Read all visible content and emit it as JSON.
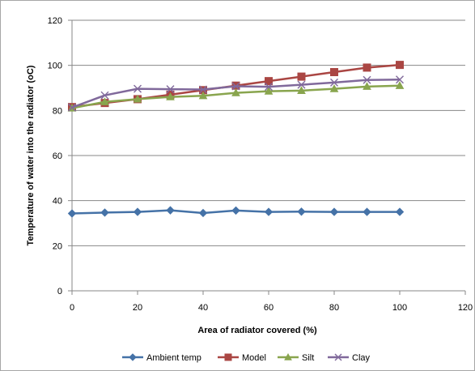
{
  "chart_data": {
    "type": "line",
    "title": "",
    "xlabel": "Area of radiator covered (%)",
    "ylabel": "Temperature of water into the radiator (oC)",
    "xlim": [
      0,
      120
    ],
    "ylim": [
      0,
      120
    ],
    "xticks": [
      0,
      20,
      40,
      60,
      80,
      100,
      120
    ],
    "yticks": [
      0,
      20,
      40,
      60,
      80,
      100,
      120
    ],
    "grid": "horizontal major gridlines",
    "legend_position": "bottom",
    "x": [
      0,
      10,
      20,
      30,
      40,
      50,
      60,
      70,
      80,
      90,
      100
    ],
    "series": [
      {
        "name": "Ambient temp",
        "color": "#4572a7",
        "marker": "diamond",
        "values": [
          34.3,
          34.7,
          35,
          35.7,
          34.5,
          35.6,
          35,
          35.1,
          35,
          35,
          35
        ]
      },
      {
        "name": "Model",
        "color": "#aa4643",
        "marker": "square",
        "values": [
          81.5,
          83.3,
          85,
          87,
          89,
          91,
          93,
          95,
          97,
          99,
          100.2
        ]
      },
      {
        "name": "Silt",
        "color": "#89a54e",
        "marker": "triangle",
        "values": [
          81,
          83.8,
          85,
          86,
          86.5,
          87.8,
          88.5,
          88.8,
          89.6,
          90.6,
          91
        ]
      },
      {
        "name": "Clay",
        "color": "#80699b",
        "marker": "x",
        "values": [
          81.3,
          86.7,
          89.6,
          89.4,
          89.3,
          90.7,
          90.5,
          91.4,
          92.4,
          93.5,
          93.7
        ]
      }
    ]
  }
}
